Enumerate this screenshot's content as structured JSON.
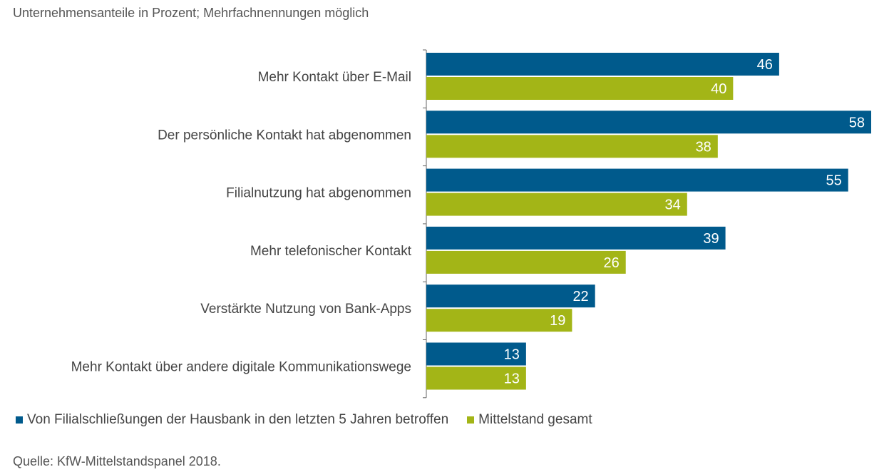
{
  "subtitle": "Unternehmensanteile in Prozent; Mehrfachnennungen möglich",
  "source": "Quelle: KfW-Mittelstandspanel 2018.",
  "colors": {
    "series1": "#005a8c",
    "series2": "#a3b517"
  },
  "chart_data": {
    "type": "bar",
    "orientation": "horizontal",
    "categories": [
      "Mehr Kontakt über E-Mail",
      "Der persönliche Kontakt hat abgenommen",
      "Filialnutzung hat abgenommen",
      "Mehr telefonischer Kontakt",
      "Verstärkte Nutzung von Bank-Apps",
      "Mehr Kontakt über andere digitale Kommunikationswege"
    ],
    "series": [
      {
        "name": "Von Filialschließungen der Hausbank in den letzten 5 Jahren betroffen",
        "values": [
          46,
          58,
          55,
          39,
          22,
          13
        ]
      },
      {
        "name": "Mittelstand gesamt",
        "values": [
          40,
          38,
          34,
          26,
          19,
          13
        ]
      }
    ],
    "xlim": [
      0,
      58
    ],
    "grid": false,
    "legend_position": "bottom-left",
    "data_labels": true
  }
}
